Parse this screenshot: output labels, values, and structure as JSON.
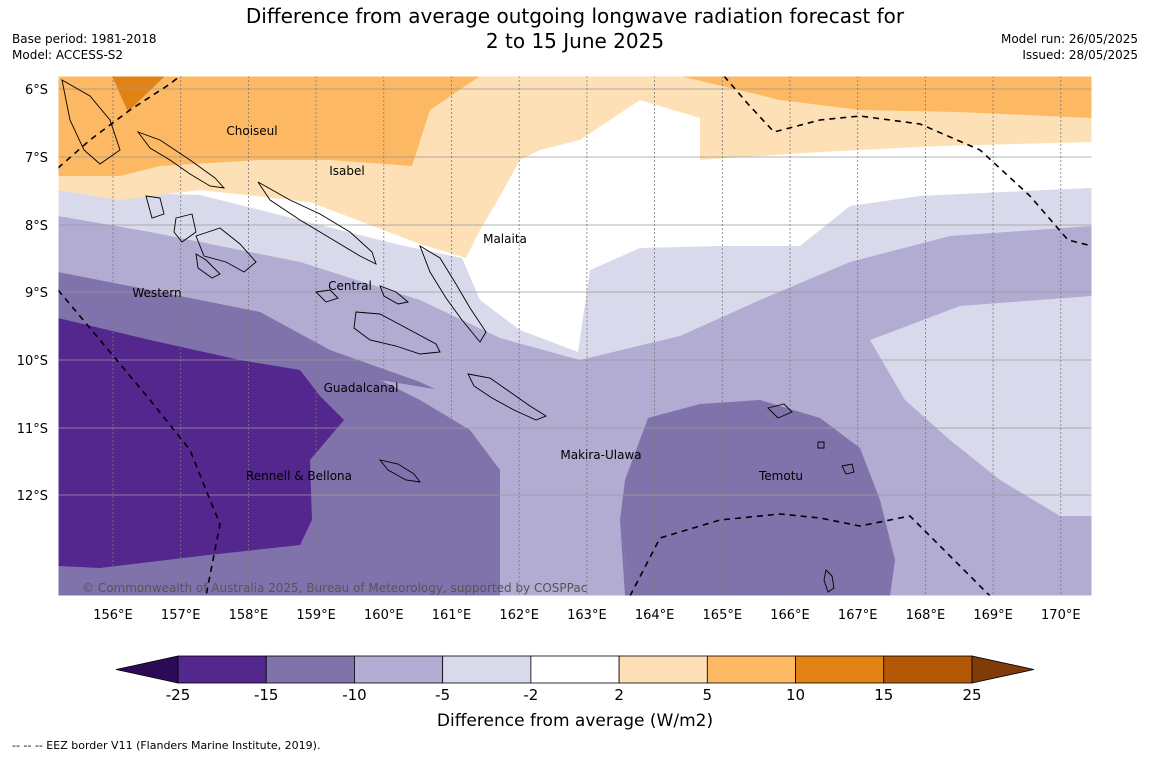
{
  "title": {
    "line1": "Difference from average outgoing longwave radiation forecast for",
    "line2": "2 to 15 June 2025"
  },
  "meta_left": {
    "base_period": "Base period: 1981-2018",
    "model": "Model: ACCESS-S2"
  },
  "meta_right": {
    "model_run": "Model run: 26/05/2025",
    "issued": "Issued: 28/05/2025"
  },
  "map": {
    "lat_labels": [
      "6°S",
      "7°S",
      "8°S",
      "9°S",
      "10°S",
      "11°S",
      "12°S"
    ],
    "lon_labels": [
      "156°E",
      "157°E",
      "158°E",
      "159°E",
      "160°E",
      "161°E",
      "162°E",
      "163°E",
      "164°E",
      "165°E",
      "166°E",
      "167°E",
      "168°E",
      "169°E",
      "170°E"
    ],
    "regions": [
      "Choiseul",
      "Isabel",
      "Malaita",
      "Western",
      "Central",
      "Guadalcanal",
      "Makira-Ulawa",
      "Rennell & Bellona",
      "Temotu"
    ],
    "copyright": "© Commonwealth of Australia 2025, Bureau of Meteorology, supported by COSPPac"
  },
  "colorbar": {
    "ticks": [
      "-25",
      "-15",
      "-10",
      "-5",
      "-2",
      "2",
      "5",
      "10",
      "15",
      "25"
    ],
    "colors": [
      "#2d0a55",
      "#54278f",
      "#8073ac",
      "#b2abd2",
      "#d8daeb",
      "#ffffff",
      "#fee0b6",
      "#fdb863",
      "#e08214",
      "#b35806",
      "#7f3b08"
    ],
    "title": "Difference from average (W/m2)"
  },
  "footer": {
    "eez_note": "--  --  -- EEZ border V11 (Flanders Marine Institute, 2019)."
  }
}
